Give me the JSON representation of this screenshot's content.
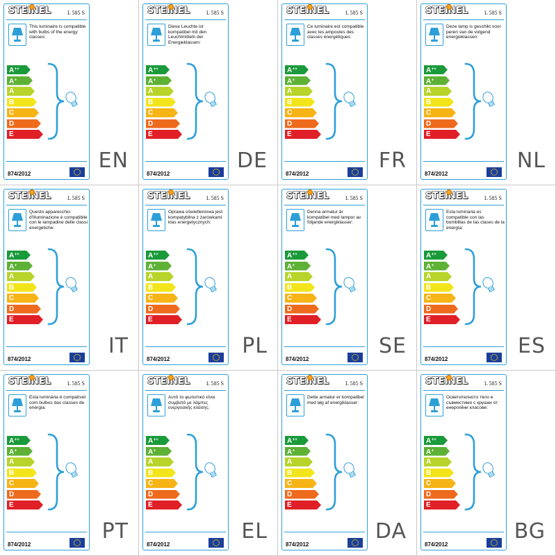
{
  "brand": "STEINEL",
  "model": "L 585 S",
  "regulation": "874/2012",
  "energy_classes": [
    {
      "letter": "A",
      "sup": "++",
      "color": "#1a9a3a"
    },
    {
      "letter": "A",
      "sup": "+",
      "color": "#5db135"
    },
    {
      "letter": "A",
      "sup": "",
      "color": "#b8d42b"
    },
    {
      "letter": "B",
      "sup": "",
      "color": "#f2e51c"
    },
    {
      "letter": "C",
      "sup": "",
      "color": "#f7b416"
    },
    {
      "letter": "D",
      "sup": "",
      "color": "#ee6a1d"
    },
    {
      "letter": "E",
      "sup": "",
      "color": "#e01f26"
    }
  ],
  "colors": {
    "accent_blue": "#2d9fd8",
    "eu_blue": "#1a3e9c",
    "eu_star": "#ffd200",
    "brand_dot": "#f7a21b"
  },
  "icons": [
    "lamp-icon",
    "bulb-icon",
    "eu-flag-icon"
  ],
  "labels": [
    {
      "lang": "EN",
      "text": "This luminaire is compatible with bulbs of the energy classes:"
    },
    {
      "lang": "DE",
      "text": "Diese Leuchte ist kompatibel mit den Leuchtmitteln der Energieklassen:"
    },
    {
      "lang": "FR",
      "text": "Ce luminaire est compatible avec les ampoules des classes énergétiques:"
    },
    {
      "lang": "NL",
      "text": "Deze lamp is geschikt voor peren van de volgend energieklassen:"
    },
    {
      "lang": "IT",
      "text": "Questo apparecchio d'illuminazione è compatibile con le lampadine delle classi energetiche:"
    },
    {
      "lang": "PL",
      "text": "Oprawa oświetleniowa jest kompatybilna z żarówkami klas energetycznych:"
    },
    {
      "lang": "SE",
      "text": "Denna armatur är kompatibel med lampor av följande energiklasser:"
    },
    {
      "lang": "ES",
      "text": "Esta luminaria es compatible con las bombillas de las clases de la energía:"
    },
    {
      "lang": "PT",
      "text": "Esta luminária é compatível com bulbos das classes de energia:"
    },
    {
      "lang": "EL",
      "text": "Αυτό το φωτιστικό είναι συμβατό με λάμπες ενεργειακής κλάσης:"
    },
    {
      "lang": "DA",
      "text": "Dette armatur er kompatibel med løg af energiklasser:"
    },
    {
      "lang": "BG",
      "text": "Осветителното тяло е съвместимо с крушки от енергийни класове:"
    }
  ]
}
